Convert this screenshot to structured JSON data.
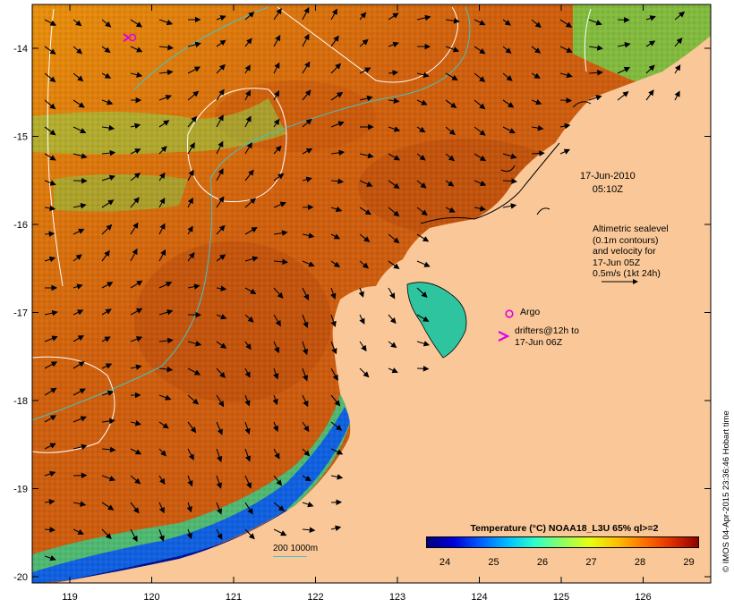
{
  "map": {
    "title_date": "17-Jun-2010",
    "title_time": "05:10Z",
    "altimetry_lines": [
      "Altimetric sealevel",
      "(0.1m contours)",
      "and velocity for",
      "17-Jun 05Z",
      "0.5m/s (1kt 24h)"
    ],
    "argo_label": "Argo",
    "drifter_lines": [
      "drifters@12h to",
      "17-Jun 06Z"
    ],
    "depth_contour_label": "200  1000m",
    "credit": "© IMOS 04-Apr-2015 23:36:46 Hobart time",
    "colorbar": {
      "title": "Temperature (°C) NOAA18_L3U 65% ql>=2",
      "ticks": [
        "24",
        "25",
        "26",
        "27",
        "28",
        "29"
      ],
      "colors": [
        "#00007f",
        "#0000d8",
        "#0060ff",
        "#00c0ff",
        "#30ffc8",
        "#90ff60",
        "#e8ff10",
        "#ffc000",
        "#ff7000",
        "#e03000",
        "#900000"
      ]
    },
    "longitude_ticks": [
      "119",
      "120",
      "121",
      "122",
      "123",
      "124",
      "125",
      "126"
    ],
    "latitude_ticks": [
      "-14",
      "-15",
      "-16",
      "-17",
      "-18",
      "-19",
      "-20"
    ],
    "colors": {
      "land": "#fac898",
      "warm_water": "#d86a10",
      "argo_marker": "#e000e0",
      "isobath": "#3fc4c4",
      "sealevel_contour": "#ffffff"
    }
  }
}
